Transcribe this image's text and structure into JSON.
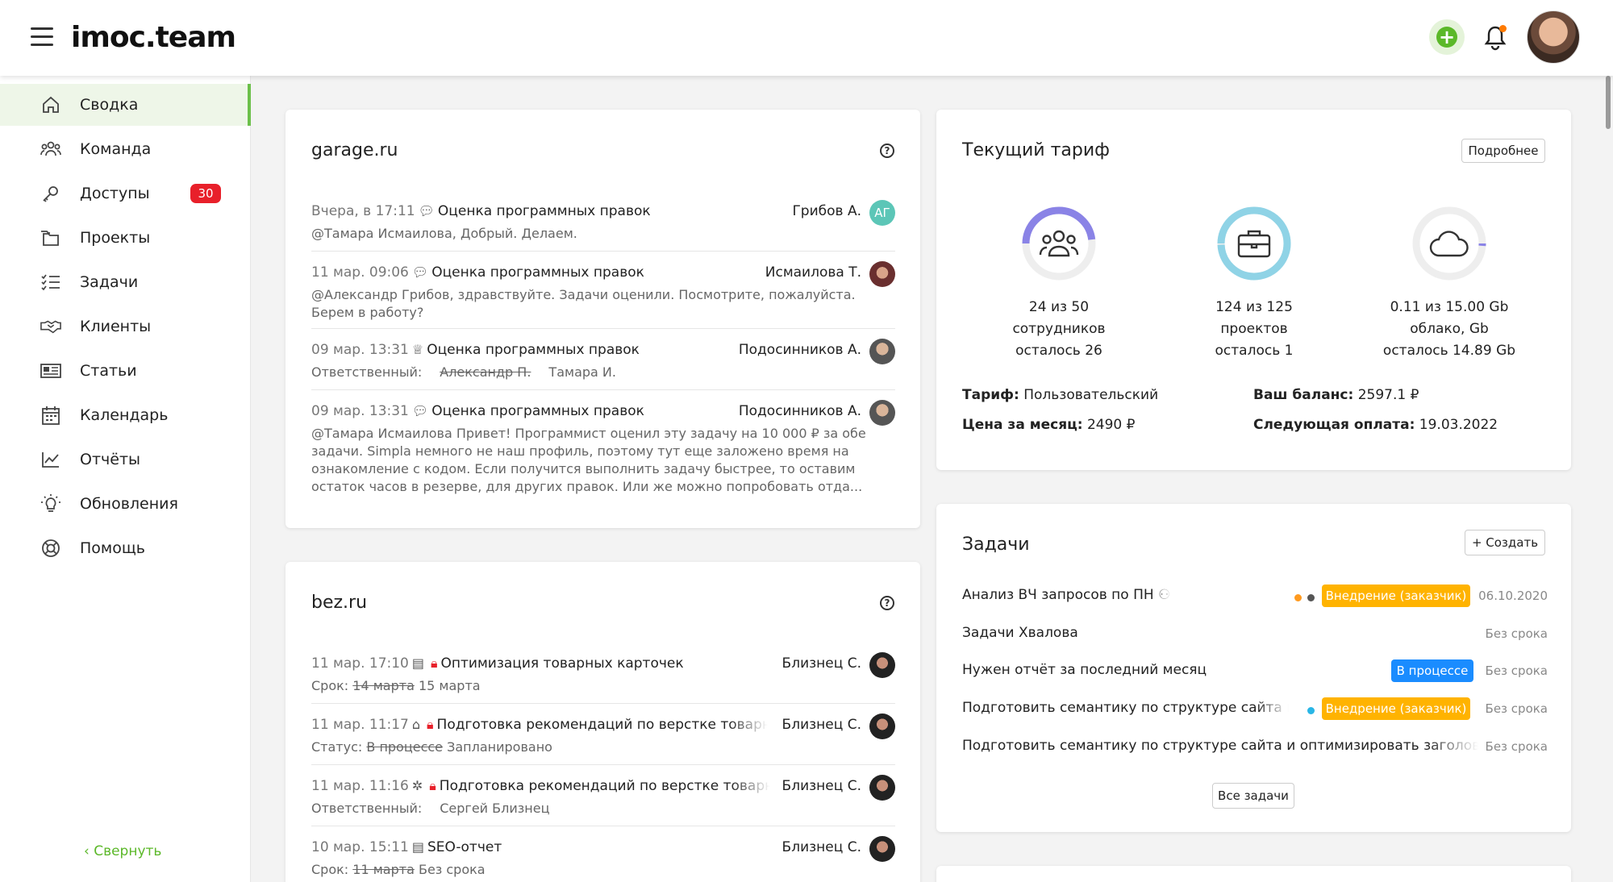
{
  "header": {
    "logo": "imoc.team",
    "colors": {
      "accent": "#6cc04a",
      "badge": "#e8202a",
      "notify_dot": "#ff7a00"
    }
  },
  "sidebar": {
    "items": [
      {
        "label": "Сводка",
        "icon": "home-icon",
        "active": true
      },
      {
        "label": "Команда",
        "icon": "team-icon"
      },
      {
        "label": "Доступы",
        "icon": "key-icon",
        "badge": "30"
      },
      {
        "label": "Проекты",
        "icon": "folder-icon"
      },
      {
        "label": "Задачи",
        "icon": "checklist-icon"
      },
      {
        "label": "Клиенты",
        "icon": "handshake-icon"
      },
      {
        "label": "Статьи",
        "icon": "newspaper-icon"
      },
      {
        "label": "Календарь",
        "icon": "calendar-icon"
      },
      {
        "label": "Отчёты",
        "icon": "chart-icon"
      },
      {
        "label": "Обновления",
        "icon": "bulb-icon"
      },
      {
        "label": "Помощь",
        "icon": "lifebuoy-icon"
      }
    ],
    "collapse_label": "Свернуть"
  },
  "feed1": {
    "title": "garage.ru",
    "rows": [
      {
        "time": "Вчера, в 17:11",
        "icon": "comment-icon",
        "title": "Оценка программных правок",
        "author": "Грибов А.",
        "avatar": "АГ",
        "sub": "@Тамара Исмаилова, Добрый. Делаем."
      },
      {
        "time": "11 мар. 09:06",
        "icon": "comment-icon",
        "title": "Оценка программных правок",
        "author": "Исмаилова Т.",
        "sub": "@Александр Грибов, здравствуйте. Задачи оценили. Посмотрите, пожалуйста. Берем в работу?"
      },
      {
        "time": "09 мар. 13:31",
        "icon": "crown-icon",
        "title": "Оценка программных правок",
        "author": "Подосинников А.",
        "sub_label": "Ответственный:",
        "sub_old": "Александр П.",
        "sub_new": "Тамара И."
      },
      {
        "time": "09 мар. 13:31",
        "icon": "comment-icon",
        "title": "Оценка программных правок",
        "author": "Подосинников А.",
        "sub": "@Тамара Исмаилова Привет! Программист оценил эту задачу на 10 000 ₽ за обе задачи. Simpla немного не наш профиль, поэтому тут еще заложено время на ознакомление с кодом. Если получится выполнить задачу быстрее, то оставим остаток часов в резерве, для других правок. Или же можно попробовать отда..."
      }
    ]
  },
  "feed2": {
    "title": "bez.ru",
    "rows": [
      {
        "time": "11 мар. 17:10",
        "icon": "calendar-icon",
        "title": "Оптимизация товарных карточек",
        "author": "Близнец С.",
        "sub_label": "Срок:",
        "sub_old": "14 марта",
        "sub_new": "15 марта"
      },
      {
        "time": "11 мар. 11:17",
        "icon": "tag-icon",
        "title": "Подготовка рекомендаций по верстке товарных",
        "author": "Близнец С.",
        "sub_label": "Статус:",
        "sub_old": "В процессе",
        "sub_new": "Запланировано"
      },
      {
        "time": "11 мар. 11:16",
        "icon": "gear-icon",
        "title": "Подготовка рекомендаций по верстке товарных",
        "author": "Близнец С.",
        "sub_label": "Ответственный:",
        "sub_new": "Сергей Близнец"
      },
      {
        "time": "10 мар. 15:11",
        "icon": "calendar-icon",
        "title": "SEO-отчет",
        "author": "Близнец С.",
        "sub_label": "Срок:",
        "sub_old": "11 марта",
        "sub_new": "Без срока"
      }
    ]
  },
  "tariff": {
    "title": "Текущий тариф",
    "details_button": "Подробнее",
    "gauges": [
      {
        "line1": "24 из 50",
        "line2": "сотрудников",
        "line3": "осталось 26",
        "fraction": 0.48,
        "color": "#8a83e6",
        "icon": "team-icon"
      },
      {
        "line1": "124 из 125",
        "line2": "проектов",
        "line3": "осталось 1",
        "fraction": 0.992,
        "color": "#8fd3e6",
        "icon": "briefcase-icon"
      },
      {
        "line1": "0.11 из 15.00 Gb",
        "line2": "облако, Gb",
        "line3": "осталось 14.89 Gb",
        "fraction": 0.0073,
        "color": "#8a83e6",
        "icon": "cloud-icon"
      }
    ],
    "plan_label": "Тариф:",
    "plan_value": "Пользовательский",
    "price_label": "Цена за месяц:",
    "price_value": "2490 ₽",
    "balance_label": "Ваш баланс:",
    "balance_value": "2597.1 ₽",
    "next_label": "Следующая оплата:",
    "next_value": "19.03.2022"
  },
  "tasks": {
    "title": "Задачи",
    "create_button": "Создать",
    "all_button": "Все задачи",
    "rows": [
      {
        "name": "Анализ ВЧ запросов по ПН",
        "dots": [
          "#ff9a1f",
          "#555555"
        ],
        "tag": "Внедрение (заказчик)",
        "tag_color": "#ffb300",
        "date": "06.10.2020"
      },
      {
        "name": "Задачи Хвалова",
        "date": "Без срока"
      },
      {
        "name": "Нужен отчёт за последний месяц",
        "tag": "В процессе",
        "tag_color": "#1a8cff",
        "date": "Без срока"
      },
      {
        "name": "Подготовить семантику по структуре сайта и оптимизировать",
        "dots": [
          "#29b6e6"
        ],
        "tag": "Внедрение (заказчик)",
        "tag_color": "#ffb300",
        "date": "Без срока"
      },
      {
        "name": "Подготовить семантику по структуре сайта и оптимизировать заголовки",
        "date": "Без срока"
      }
    ]
  }
}
